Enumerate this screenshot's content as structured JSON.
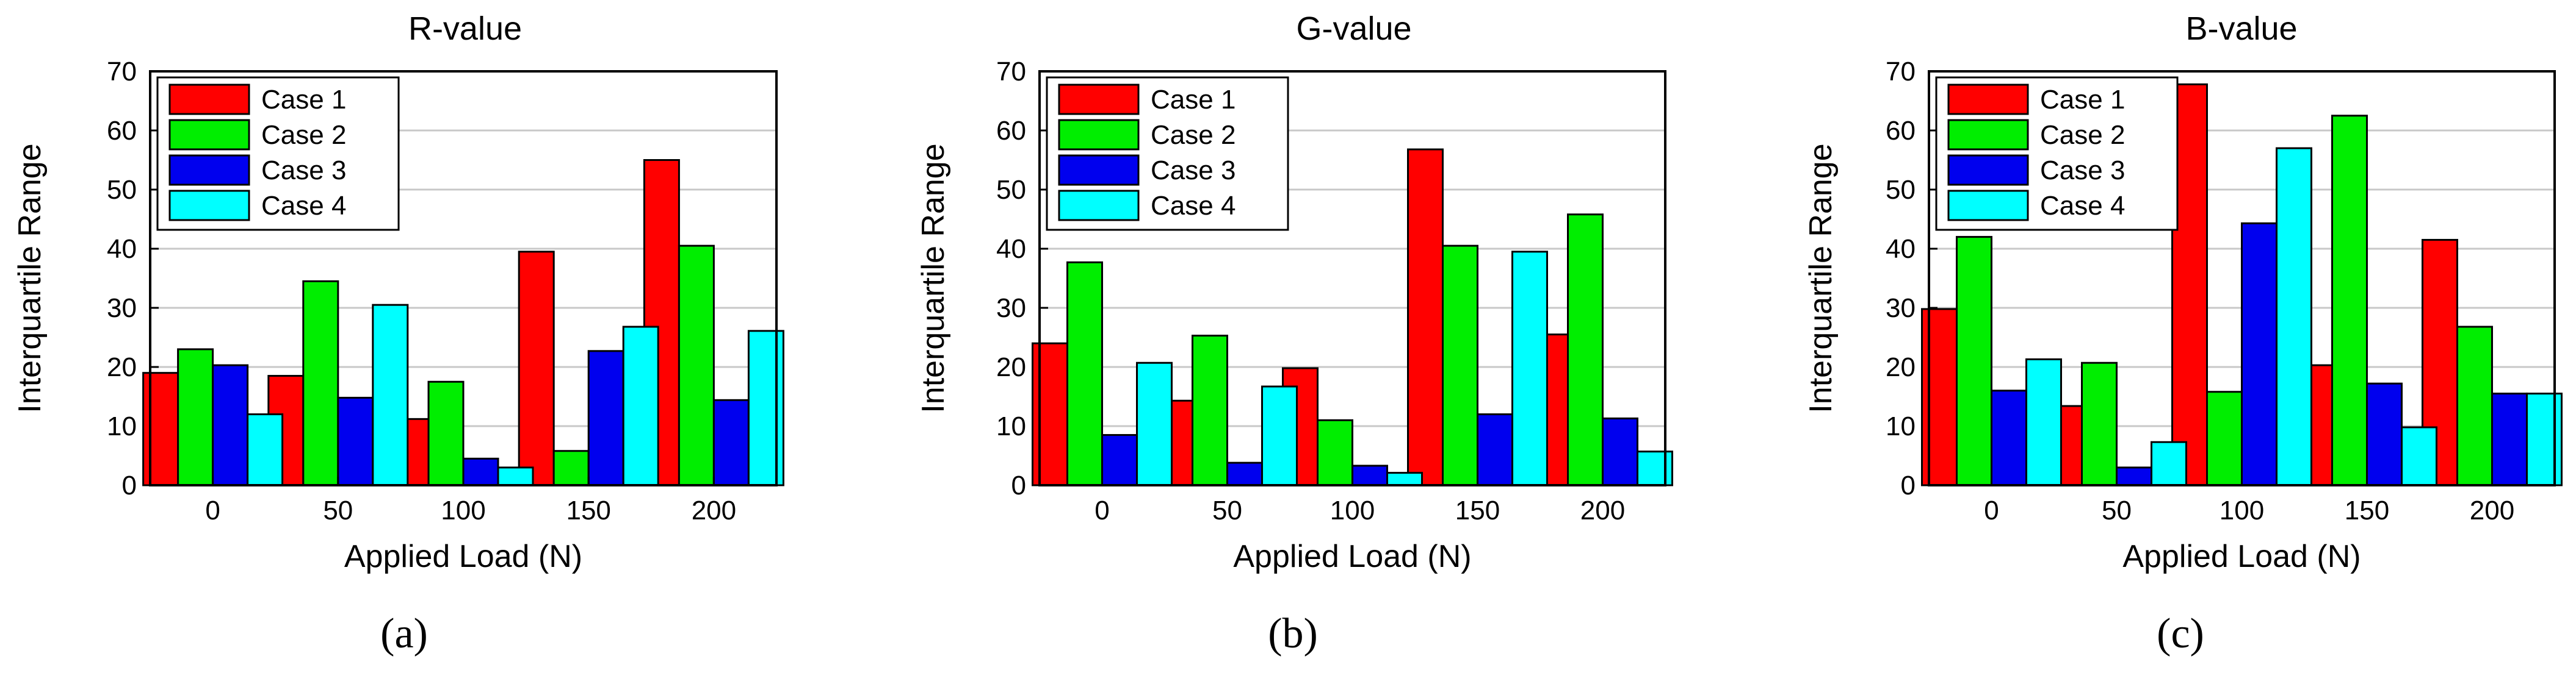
{
  "figure": {
    "colors": {
      "case1": "#ff0000",
      "case2": "#00ee00",
      "case3": "#0000ee",
      "case4": "#00ffff",
      "grid": "#c8c8c8",
      "axis": "#000000"
    }
  },
  "chart_data": [
    {
      "type": "bar",
      "panel_label": "(a)",
      "title": "R-value",
      "xlabel": "Applied Load (N)",
      "ylabel": "Interquartile Range",
      "categories": [
        "0",
        "50",
        "100",
        "150",
        "200"
      ],
      "ylim": [
        0,
        70
      ],
      "yticks": [
        "0",
        "10",
        "20",
        "30",
        "40",
        "50",
        "60",
        "70"
      ],
      "grid": true,
      "legend_position": "top-left",
      "series": [
        {
          "name": "Case 1",
          "color_key": "case1",
          "values": [
            19,
            18.5,
            11.2,
            39.5,
            55
          ]
        },
        {
          "name": "Case 2",
          "color_key": "case2",
          "values": [
            23,
            34.5,
            17.5,
            5.8,
            40.5
          ]
        },
        {
          "name": "Case 3",
          "color_key": "case3",
          "values": [
            20.3,
            14.8,
            4.5,
            22.7,
            14.4
          ]
        },
        {
          "name": "Case 4",
          "color_key": "case4",
          "values": [
            12,
            30.5,
            3,
            26.8,
            26.1
          ]
        }
      ]
    },
    {
      "type": "bar",
      "panel_label": "(b)",
      "title": "G-value",
      "xlabel": "Applied Load (N)",
      "ylabel": "Interquartile Range",
      "categories": [
        "0",
        "50",
        "100",
        "150",
        "200"
      ],
      "ylim": [
        0,
        70
      ],
      "yticks": [
        "0",
        "10",
        "20",
        "30",
        "40",
        "50",
        "60",
        "70"
      ],
      "grid": true,
      "legend_position": "top-left",
      "series": [
        {
          "name": "Case 1",
          "color_key": "case1",
          "values": [
            24,
            14.3,
            19.8,
            56.8,
            25.5
          ]
        },
        {
          "name": "Case 2",
          "color_key": "case2",
          "values": [
            37.7,
            25.3,
            11,
            40.5,
            45.8
          ]
        },
        {
          "name": "Case 3",
          "color_key": "case3",
          "values": [
            8.5,
            3.8,
            3.3,
            12,
            11.3
          ]
        },
        {
          "name": "Case 4",
          "color_key": "case4",
          "values": [
            20.7,
            16.7,
            2.1,
            39.5,
            5.7
          ]
        }
      ]
    },
    {
      "type": "bar",
      "panel_label": "(c)",
      "title": "B-value",
      "xlabel": "Applied Load (N)",
      "ylabel": "Interquartile Range",
      "categories": [
        "0",
        "50",
        "100",
        "150",
        "200"
      ],
      "ylim": [
        0,
        70
      ],
      "yticks": [
        "0",
        "10",
        "20",
        "30",
        "40",
        "50",
        "60",
        "70"
      ],
      "grid": true,
      "legend_position": "top-left",
      "series": [
        {
          "name": "Case 1",
          "color_key": "case1",
          "values": [
            29.8,
            13.4,
            67.8,
            20.3,
            41.5
          ]
        },
        {
          "name": "Case 2",
          "color_key": "case2",
          "values": [
            42,
            20.7,
            15.8,
            62.5,
            26.8
          ]
        },
        {
          "name": "Case 3",
          "color_key": "case3",
          "values": [
            16,
            3,
            44.3,
            17.2,
            15.5
          ]
        },
        {
          "name": "Case 4",
          "color_key": "case4",
          "values": [
            21.3,
            7.3,
            57,
            9.8,
            15.5
          ]
        }
      ]
    }
  ]
}
